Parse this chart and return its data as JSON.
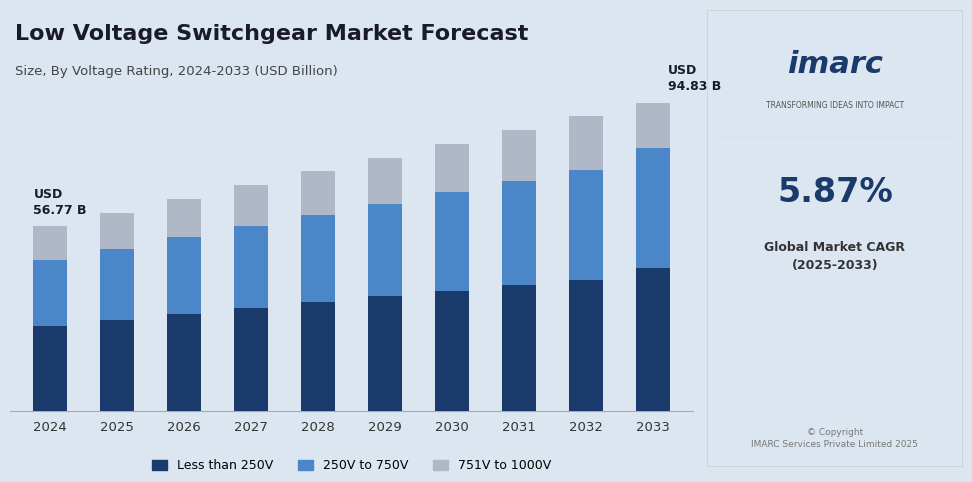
{
  "title": "Low Voltage Switchgear Market Forecast",
  "subtitle": "Size, By Voltage Rating, 2024-2033 (USD Billion)",
  "years": [
    2024,
    2025,
    2026,
    2027,
    2028,
    2029,
    2030,
    2031,
    2032,
    2033
  ],
  "less_than_250v": [
    26.0,
    27.5,
    29.2,
    31.0,
    32.9,
    34.8,
    36.9,
    39.1,
    41.4,
    43.9
  ],
  "v250_to_750v": [
    20.5,
    21.8,
    23.2,
    24.8,
    26.5,
    28.2,
    30.2,
    32.2,
    34.5,
    37.0
  ],
  "v751_to_1000v": [
    10.27,
    10.9,
    11.6,
    12.3,
    13.1,
    14.0,
    14.9,
    15.9,
    16.9,
    13.93
  ],
  "total_2024": 56.77,
  "total_2033": 94.83,
  "color_less_250": "#1a3a6b",
  "color_250_750": "#4b86c8",
  "color_751_1000": "#b0b8c8",
  "bg_color": "#dce6f0",
  "right_panel_bg": "#ffffff",
  "annotation_2024_text": "USD\n56.77 B",
  "annotation_2033_text": "USD\n94.83 B",
  "legend_labels": [
    "Less than 250V",
    "250V to 750V",
    "751V to 1000V"
  ],
  "cagr_text": "5.87%",
  "cagr_label": "Global Market CAGR\n(2025-2033)",
  "copyright_text": "© Copyright\nIMARC Services Private Limited 2025",
  "imarc_text": "imarc",
  "transforming_text": "TRANSFORMING IDEAS INTO IMPACT"
}
